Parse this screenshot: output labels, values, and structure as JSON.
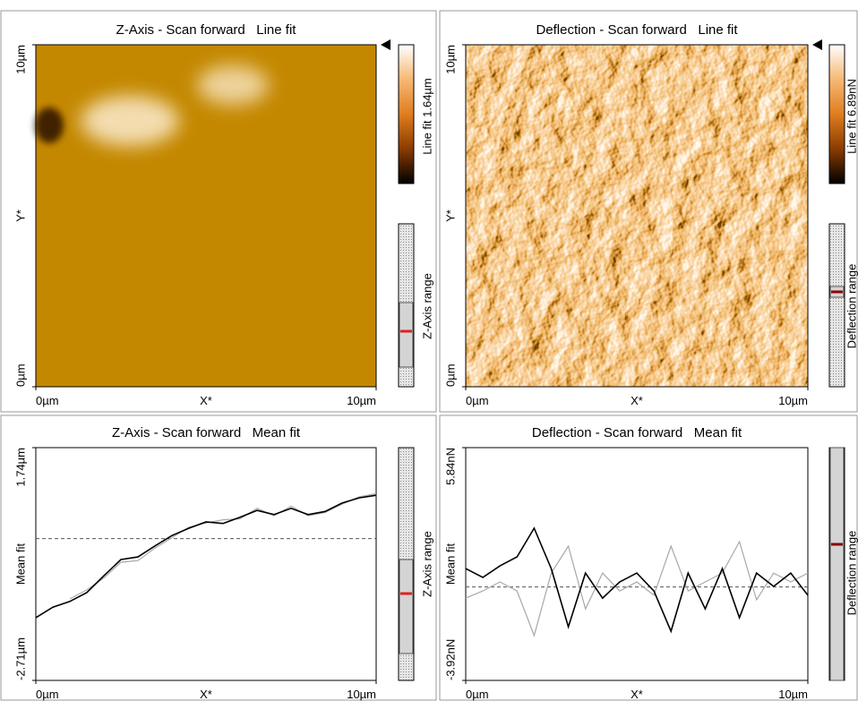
{
  "images": [
    {
      "title": "Z-Axis - Scan forward   Line fit",
      "xlabel": "X*",
      "ylabel": "Y*",
      "xlim": [
        0,
        10
      ],
      "ylim": [
        0,
        10
      ],
      "xticks": [
        {
          "value": 0,
          "label": "0µm"
        },
        {
          "value": 10,
          "label": "10µm"
        }
      ],
      "yticks": [
        {
          "value": 0,
          "label": "0µm"
        },
        {
          "value": 10,
          "label": "10µm"
        }
      ],
      "colorbar_label": "Line fit 1.64µm",
      "range_label": "Z-Axis range"
    },
    {
      "title": "Deflection - Scan forward   Line fit",
      "xlabel": "X*",
      "ylabel": "Y*",
      "xlim": [
        0,
        10
      ],
      "ylim": [
        0,
        10
      ],
      "xticks": [
        {
          "value": 0,
          "label": "0µm"
        },
        {
          "value": 10,
          "label": "10µm"
        }
      ],
      "yticks": [
        {
          "value": 0,
          "label": "0µm"
        },
        {
          "value": 10,
          "label": "10µm"
        }
      ],
      "colorbar_label": "Line fit 6.89nN",
      "range_label": "Deflection range"
    }
  ],
  "chart_data": [
    {
      "type": "line",
      "title": "Z-Axis - Scan forward   Mean fit",
      "xlabel": "X*",
      "ylabel": "Mean fit",
      "x": [
        0,
        0.5,
        1,
        1.5,
        2,
        2.5,
        3,
        3.5,
        4,
        4.5,
        5,
        5.5,
        6,
        6.5,
        7,
        7.5,
        8,
        8.5,
        9,
        9.5,
        10
      ],
      "xlim": [
        0,
        10
      ],
      "xticks": [
        {
          "value": 0,
          "label": "0µm"
        },
        {
          "value": 10,
          "label": "10µm"
        }
      ],
      "ylim": [
        -2.71,
        1.74
      ],
      "yticks": [
        {
          "value": -2.71,
          "label": "-2.71µm"
        },
        {
          "value": 1.74,
          "label": "1.74µm"
        }
      ],
      "reference_y": 0,
      "series": [
        {
          "color": "#000000",
          "values": [
            -1.51,
            -1.31,
            -1.2,
            -1.03,
            -0.71,
            -0.4,
            -0.35,
            -0.14,
            0.06,
            0.2,
            0.32,
            0.29,
            0.41,
            0.54,
            0.46,
            0.58,
            0.46,
            0.52,
            0.68,
            0.78,
            0.83
          ]
        },
        {
          "color": "#a8a8a8",
          "values": [
            null,
            null,
            -1.15,
            -0.98,
            -0.75,
            -0.45,
            -0.42,
            -0.18,
            0.02,
            0.22,
            0.3,
            0.36,
            0.38,
            0.58,
            0.44,
            0.62,
            0.44,
            0.5,
            0.66,
            0.8,
            0.86
          ]
        }
      ],
      "range_label": "Z-Axis range"
    },
    {
      "type": "line",
      "title": "Deflection - Scan forward   Mean fit",
      "xlabel": "X*",
      "ylabel": "Mean fit",
      "x": [
        0,
        0.5,
        1,
        1.5,
        2,
        2.5,
        3,
        3.5,
        4,
        4.5,
        5,
        5.5,
        6,
        6.5,
        7,
        7.5,
        8,
        8.5,
        9,
        9.5,
        10
      ],
      "xlim": [
        0,
        10
      ],
      "xticks": [
        {
          "value": 0,
          "label": "0µm"
        },
        {
          "value": 10,
          "label": "10µm"
        }
      ],
      "ylim": [
        -3.92,
        5.84
      ],
      "yticks": [
        {
          "value": -3.92,
          "label": "-3.92nN"
        },
        {
          "value": 5.84,
          "label": "5.84nN"
        }
      ],
      "reference_y": 0,
      "series": [
        {
          "color": "#000000",
          "values": [
            0.77,
            0.4,
            0.88,
            1.26,
            2.46,
            0.77,
            -1.67,
            0.58,
            -0.47,
            0.21,
            0.58,
            -0.17,
            -1.86,
            0.58,
            -0.92,
            0.77,
            -1.29,
            0.58,
            0.02,
            0.58,
            -0.35
          ]
        },
        {
          "color": "#a8a8a8",
          "values": [
            -0.47,
            -0.17,
            0.21,
            -0.17,
            -2.04,
            0.58,
            1.71,
            -0.92,
            0.58,
            -0.17,
            0.21,
            -0.35,
            1.71,
            -0.17,
            0.21,
            0.58,
            1.9,
            -0.54,
            0.58,
            0.21,
            0.58
          ]
        }
      ],
      "range_label": "Deflection range"
    }
  ]
}
